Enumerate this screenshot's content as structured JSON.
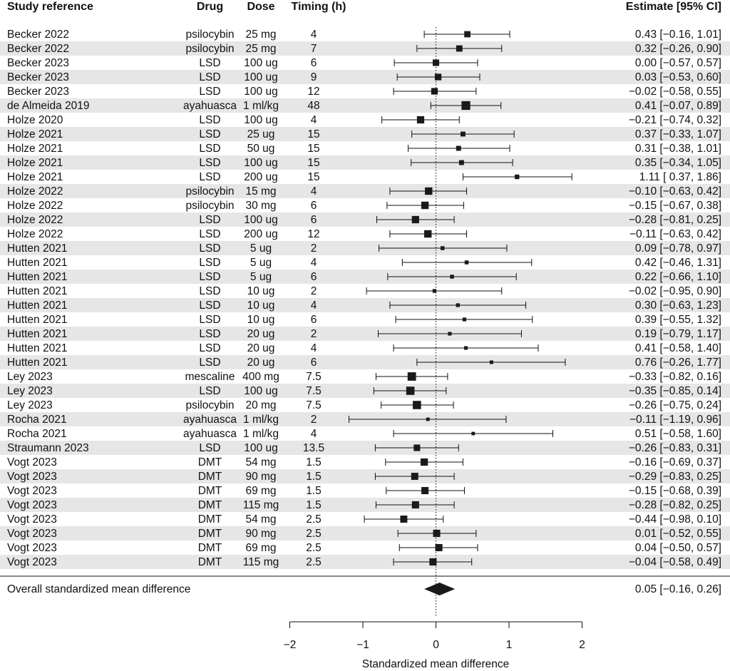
{
  "chart_data": {
    "type": "forest",
    "headers": {
      "study": "Study reference",
      "drug": "Drug",
      "dose": "Dose",
      "timing": "Timing (h)",
      "estimate": "Estimate [95% CI]"
    },
    "rows": [
      {
        "study": "Becker 2022",
        "drug": "psilocybin",
        "dose": "25 mg",
        "timing": "4",
        "est": 0.43,
        "lo": -0.16,
        "hi": 1.01,
        "label": "0.43 [−0.16, 1.01]"
      },
      {
        "study": "Becker 2022",
        "drug": "psilocybin",
        "dose": "25 mg",
        "timing": "7",
        "est": 0.32,
        "lo": -0.26,
        "hi": 0.9,
        "label": "0.32 [−0.26, 0.90]"
      },
      {
        "study": "Becker 2023",
        "drug": "LSD",
        "dose": "100 ug",
        "timing": "6",
        "est": 0.0,
        "lo": -0.57,
        "hi": 0.57,
        "label": "0.00 [−0.57, 0.57]"
      },
      {
        "study": "Becker 2023",
        "drug": "LSD",
        "dose": "100 ug",
        "timing": "9",
        "est": 0.03,
        "lo": -0.53,
        "hi": 0.6,
        "label": "0.03 [−0.53, 0.60]"
      },
      {
        "study": "Becker 2023",
        "drug": "LSD",
        "dose": "100 ug",
        "timing": "12",
        "est": -0.02,
        "lo": -0.58,
        "hi": 0.55,
        "label": "−0.02 [−0.58, 0.55]"
      },
      {
        "study": "de Almeida 2019",
        "drug": "ayahuasca",
        "dose": "1 ml/kg",
        "timing": "48",
        "est": 0.41,
        "lo": -0.07,
        "hi": 0.89,
        "label": "0.41 [−0.07, 0.89]"
      },
      {
        "study": "Holze 2020",
        "drug": "LSD",
        "dose": "100 ug",
        "timing": "4",
        "est": -0.21,
        "lo": -0.74,
        "hi": 0.32,
        "label": "−0.21 [−0.74, 0.32]"
      },
      {
        "study": "Holze 2021",
        "drug": "LSD",
        "dose": "25 ug",
        "timing": "15",
        "est": 0.37,
        "lo": -0.33,
        "hi": 1.07,
        "label": "0.37 [−0.33, 1.07]"
      },
      {
        "study": "Holze 2021",
        "drug": "LSD",
        "dose": "50 ug",
        "timing": "15",
        "est": 0.31,
        "lo": -0.38,
        "hi": 1.01,
        "label": "0.31 [−0.38, 1.01]"
      },
      {
        "study": "Holze 2021",
        "drug": "LSD",
        "dose": "100 ug",
        "timing": "15",
        "est": 0.35,
        "lo": -0.34,
        "hi": 1.05,
        "label": "0.35 [−0.34, 1.05]"
      },
      {
        "study": "Holze 2021",
        "drug": "LSD",
        "dose": "200 ug",
        "timing": "15",
        "est": 1.11,
        "lo": 0.37,
        "hi": 1.86,
        "label": "1.11 [ 0.37, 1.86]"
      },
      {
        "study": "Holze 2022",
        "drug": "psilocybin",
        "dose": "15 mg",
        "timing": "4",
        "est": -0.1,
        "lo": -0.63,
        "hi": 0.42,
        "label": "−0.10 [−0.63, 0.42]"
      },
      {
        "study": "Holze 2022",
        "drug": "psilocybin",
        "dose": "30 mg",
        "timing": "6",
        "est": -0.15,
        "lo": -0.67,
        "hi": 0.38,
        "label": "−0.15 [−0.67, 0.38]"
      },
      {
        "study": "Holze 2022",
        "drug": "LSD",
        "dose": "100 ug",
        "timing": "6",
        "est": -0.28,
        "lo": -0.81,
        "hi": 0.25,
        "label": "−0.28 [−0.81, 0.25]"
      },
      {
        "study": "Holze 2022",
        "drug": "LSD",
        "dose": "200 ug",
        "timing": "12",
        "est": -0.11,
        "lo": -0.63,
        "hi": 0.42,
        "label": "−0.11 [−0.63, 0.42]"
      },
      {
        "study": "Hutten 2021",
        "drug": "LSD",
        "dose": "5 ug",
        "timing": "2",
        "est": 0.09,
        "lo": -0.78,
        "hi": 0.97,
        "label": "0.09 [−0.78, 0.97]"
      },
      {
        "study": "Hutten 2021",
        "drug": "LSD",
        "dose": "5 ug",
        "timing": "4",
        "est": 0.42,
        "lo": -0.46,
        "hi": 1.31,
        "label": "0.42 [−0.46, 1.31]"
      },
      {
        "study": "Hutten 2021",
        "drug": "LSD",
        "dose": "5 ug",
        "timing": "6",
        "est": 0.22,
        "lo": -0.66,
        "hi": 1.1,
        "label": "0.22 [−0.66, 1.10]"
      },
      {
        "study": "Hutten 2021",
        "drug": "LSD",
        "dose": "10 ug",
        "timing": "2",
        "est": -0.02,
        "lo": -0.95,
        "hi": 0.9,
        "label": "−0.02 [−0.95, 0.90]"
      },
      {
        "study": "Hutten 2021",
        "drug": "LSD",
        "dose": "10 ug",
        "timing": "4",
        "est": 0.3,
        "lo": -0.63,
        "hi": 1.23,
        "label": "0.30 [−0.63, 1.23]"
      },
      {
        "study": "Hutten 2021",
        "drug": "LSD",
        "dose": "10 ug",
        "timing": "6",
        "est": 0.39,
        "lo": -0.55,
        "hi": 1.32,
        "label": "0.39 [−0.55, 1.32]"
      },
      {
        "study": "Hutten 2021",
        "drug": "LSD",
        "dose": "20 ug",
        "timing": "2",
        "est": 0.19,
        "lo": -0.79,
        "hi": 1.17,
        "label": "0.19 [−0.79, 1.17]"
      },
      {
        "study": "Hutten 2021",
        "drug": "LSD",
        "dose": "20 ug",
        "timing": "4",
        "est": 0.41,
        "lo": -0.58,
        "hi": 1.4,
        "label": "0.41 [−0.58, 1.40]"
      },
      {
        "study": "Hutten 2021",
        "drug": "LSD",
        "dose": "20 ug",
        "timing": "6",
        "est": 0.76,
        "lo": -0.26,
        "hi": 1.77,
        "label": "0.76 [−0.26, 1.77]"
      },
      {
        "study": "Ley 2023",
        "drug": "mescaline",
        "dose": "400 mg",
        "timing": "7.5",
        "est": -0.33,
        "lo": -0.82,
        "hi": 0.16,
        "label": "−0.33 [−0.82, 0.16]"
      },
      {
        "study": "Ley 2023",
        "drug": "LSD",
        "dose": "100 ug",
        "timing": "7.5",
        "est": -0.35,
        "lo": -0.85,
        "hi": 0.14,
        "label": "−0.35 [−0.85, 0.14]"
      },
      {
        "study": "Ley 2023",
        "drug": "psilocybin",
        "dose": "20 mg",
        "timing": "7.5",
        "est": -0.26,
        "lo": -0.75,
        "hi": 0.24,
        "label": "−0.26 [−0.75, 0.24]"
      },
      {
        "study": "Rocha 2021",
        "drug": "ayahuasca",
        "dose": "1 ml/kg",
        "timing": "2",
        "est": -0.11,
        "lo": -1.19,
        "hi": 0.96,
        "label": "−0.11 [−1.19, 0.96]"
      },
      {
        "study": "Rocha 2021",
        "drug": "ayahuasca",
        "dose": "1 ml/kg",
        "timing": "4",
        "est": 0.51,
        "lo": -0.58,
        "hi": 1.6,
        "label": "0.51 [−0.58, 1.60]"
      },
      {
        "study": "Straumann 2023",
        "drug": "LSD",
        "dose": "100 ug",
        "timing": "13.5",
        "est": -0.26,
        "lo": -0.83,
        "hi": 0.31,
        "label": "−0.26 [−0.83, 0.31]"
      },
      {
        "study": "Vogt 2023",
        "drug": "DMT",
        "dose": "54 mg",
        "timing": "1.5",
        "est": -0.16,
        "lo": -0.69,
        "hi": 0.37,
        "label": "−0.16 [−0.69, 0.37]"
      },
      {
        "study": "Vogt 2023",
        "drug": "DMT",
        "dose": "90 mg",
        "timing": "1.5",
        "est": -0.29,
        "lo": -0.83,
        "hi": 0.25,
        "label": "−0.29 [−0.83, 0.25]"
      },
      {
        "study": "Vogt 2023",
        "drug": "DMT",
        "dose": "69 mg",
        "timing": "1.5",
        "est": -0.15,
        "lo": -0.68,
        "hi": 0.39,
        "label": "−0.15 [−0.68, 0.39]"
      },
      {
        "study": "Vogt 2023",
        "drug": "DMT",
        "dose": "115 mg",
        "timing": "1.5",
        "est": -0.28,
        "lo": -0.82,
        "hi": 0.25,
        "label": "−0.28 [−0.82, 0.25]"
      },
      {
        "study": "Vogt 2023",
        "drug": "DMT",
        "dose": "54 mg",
        "timing": "2.5",
        "est": -0.44,
        "lo": -0.98,
        "hi": 0.1,
        "label": "−0.44 [−0.98, 0.10]"
      },
      {
        "study": "Vogt 2023",
        "drug": "DMT",
        "dose": "90 mg",
        "timing": "2.5",
        "est": 0.01,
        "lo": -0.52,
        "hi": 0.55,
        "label": "0.01 [−0.52, 0.55]"
      },
      {
        "study": "Vogt 2023",
        "drug": "DMT",
        "dose": "69 mg",
        "timing": "2.5",
        "est": 0.04,
        "lo": -0.5,
        "hi": 0.57,
        "label": "0.04 [−0.50, 0.57]"
      },
      {
        "study": "Vogt 2023",
        "drug": "DMT",
        "dose": "115 mg",
        "timing": "2.5",
        "est": -0.04,
        "lo": -0.58,
        "hi": 0.49,
        "label": "−0.04 [−0.58, 0.49]"
      }
    ],
    "overall": {
      "label": "Overall standardized mean difference",
      "est": 0.05,
      "lo": -0.16,
      "hi": 0.26,
      "estimate_text": "0.05 [−0.16, 0.26]"
    },
    "xaxis": {
      "label": "Standardized mean difference",
      "range": [
        -2,
        2
      ],
      "ticks": [
        -2,
        -1,
        0,
        1,
        2
      ],
      "tick_labels": [
        "−2",
        "−1",
        "0",
        "1",
        "2"
      ]
    },
    "colors": {
      "stripe": "#e6e6e6",
      "ink": "#111111",
      "marker": "#1a1a1a"
    }
  }
}
